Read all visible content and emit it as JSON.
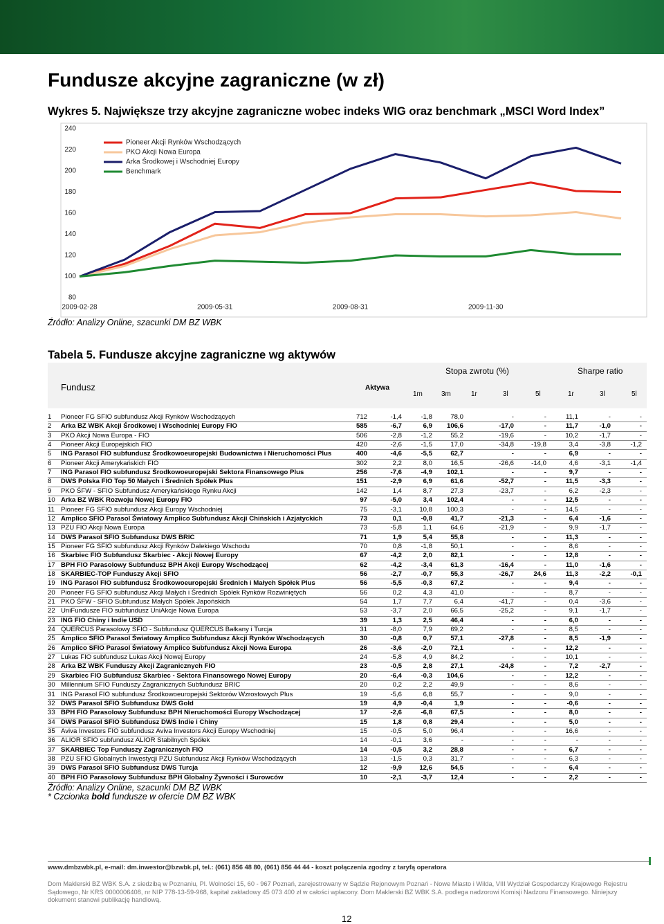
{
  "header": {
    "title": "Fundusze akcyjne zagraniczne (w zł)"
  },
  "chart_data": {
    "type": "line",
    "title": "Wykres 5. Największe trzy akcyjne zagraniczne wobec indeks WIG oraz benchmark „MSCI Word Index”",
    "categories": [
      "2009-02-28",
      null,
      null,
      "2009-05-31",
      null,
      null,
      "2009-08-31",
      null,
      null,
      "2009-11-30",
      null,
      null,
      null
    ],
    "series": [
      {
        "name": "Pioneer Akcji Rynków Wschodzących",
        "color": "#e2231a",
        "values": [
          100,
          112,
          129,
          150,
          146,
          159,
          160,
          174,
          175,
          182,
          189,
          181,
          180
        ]
      },
      {
        "name": "PKO Akcji Nowa Europa",
        "color": "#f7c79b",
        "values": [
          100,
          110,
          126,
          139,
          142,
          151,
          156,
          159,
          159,
          157,
          158,
          161,
          155
        ]
      },
      {
        "name": "Arka Środkowej i Wschodniej Europy",
        "color": "#1b1f6b",
        "values": [
          100,
          116,
          142,
          161,
          162,
          182,
          202,
          216,
          208,
          193,
          214,
          222,
          207
        ]
      },
      {
        "name": "Benchmark",
        "color": "#1f8a32",
        "values": [
          100,
          104,
          110,
          115,
          114,
          113,
          115,
          120,
          119,
          119,
          125,
          121,
          121
        ]
      }
    ],
    "ylim": [
      80,
      240
    ],
    "yticks": [
      80,
      100,
      120,
      140,
      160,
      180,
      200,
      220,
      240
    ],
    "legend": "upper left",
    "grid": false
  },
  "chart_source": "Źródło: Analizy Online, szacunki DM BZ WBK",
  "table": {
    "title": "Tabela 5. Fundusze akcyjne zagraniczne wg aktywów",
    "fund_header": "Fundusz",
    "assets_header": "Aktywa",
    "groups": [
      "Stopa zwrotu (%)",
      "Sharpe ratio"
    ],
    "subheaders": [
      "1m",
      "3m",
      "1r",
      "3l",
      "5l",
      "1r",
      "3l",
      "5l"
    ],
    "rows": [
      {
        "bold": false,
        "cells": [
          "1",
          "Pioneer FG SFIO subfundusz Akcji Rynków Wschodzących",
          "712",
          "-1,4",
          "-1,8",
          "78,0",
          "-",
          "-",
          "11,1",
          "-",
          "-"
        ]
      },
      {
        "bold": true,
        "cells": [
          "2",
          "Arka BZ WBK Akcji Środkowej i Wschodniej Europy FIO",
          "585",
          "-6,7",
          "6,9",
          "106,6",
          "-17,0",
          "-",
          "11,7",
          "-1,0",
          "-"
        ]
      },
      {
        "bold": false,
        "cells": [
          "3",
          "PKO Akcji Nowa Europa - FIO",
          "506",
          "-2,8",
          "-1,2",
          "55,2",
          "-19,6",
          "-",
          "10,2",
          "-1,7",
          "-"
        ]
      },
      {
        "bold": false,
        "cells": [
          "4",
          "Pioneer Akcji Europejskich FIO",
          "420",
          "-2,6",
          "-1,5",
          "17,0",
          "-34,8",
          "-19,8",
          "3,4",
          "-3,8",
          "-1,2"
        ]
      },
      {
        "bold": true,
        "cells": [
          "5",
          "ING Parasol FIO subfundusz Środkowoeuropejski Budownictwa i Nieruchomości Plus",
          "400",
          "-4,6",
          "-5,5",
          "62,7",
          "-",
          "-",
          "6,9",
          "-",
          "-"
        ]
      },
      {
        "bold": false,
        "cells": [
          "6",
          "Pioneer Akcji Amerykańskich FIO",
          "302",
          "2,2",
          "8,0",
          "16,5",
          "-26,6",
          "-14,0",
          "4,6",
          "-3,1",
          "-1,4"
        ]
      },
      {
        "bold": true,
        "cells": [
          "7",
          "ING Parasol FIO subfundusz Środkowoeuropejski Sektora Finansowego Plus",
          "256",
          "-7,6",
          "-4,9",
          "102,1",
          "-",
          "-",
          "9,7",
          "-",
          "-"
        ]
      },
      {
        "bold": true,
        "cells": [
          "8",
          "DWS Polska FIO Top 50 Małych i Średnich Spółek Plus",
          "151",
          "-2,9",
          "6,9",
          "61,6",
          "-52,7",
          "-",
          "11,5",
          "-3,3",
          "-"
        ]
      },
      {
        "bold": false,
        "cells": [
          "9",
          "PKO ŚFW - SFIO Subfundusz Amerykańskiego Rynku Akcji",
          "142",
          "1,4",
          "8,7",
          "27,3",
          "-23,7",
          "-",
          "6,2",
          "-2,3",
          "-"
        ]
      },
      {
        "bold": true,
        "cells": [
          "10",
          "Arka BZ WBK Rozwoju Nowej Europy FIO",
          "97",
          "-5,0",
          "3,4",
          "102,4",
          "-",
          "-",
          "12,5",
          "-",
          "-"
        ]
      },
      {
        "bold": false,
        "cells": [
          "11",
          "Pioneer FG SFIO subfundusz Akcji Europy Wschodniej",
          "75",
          "-3,1",
          "10,8",
          "100,3",
          "-",
          "-",
          "14,5",
          "-",
          "-"
        ]
      },
      {
        "bold": true,
        "cells": [
          "12",
          "Amplico SFIO Parasol Światowy Amplico Subfundusz Akcji Chińskich i Azjatyckich",
          "73",
          "0,1",
          "-0,8",
          "41,7",
          "-21,3",
          "-",
          "6,4",
          "-1,6",
          "-"
        ]
      },
      {
        "bold": false,
        "cells": [
          "13",
          "PZU FIO Akcji Nowa Europa",
          "73",
          "-5,8",
          "1,1",
          "64,6",
          "-21,9",
          "-",
          "9,9",
          "-1,7",
          "-"
        ]
      },
      {
        "bold": true,
        "cells": [
          "14",
          "DWS Parasol SFIO Subfundusz DWS BRIC",
          "71",
          "1,9",
          "5,4",
          "55,8",
          "-",
          "-",
          "11,3",
          "-",
          "-"
        ]
      },
      {
        "bold": false,
        "cells": [
          "15",
          "Pioneer FG SFIO subfundusz Akcji Rynków Dalekiego Wschodu",
          "70",
          "0,8",
          "-1,8",
          "50,1",
          "-",
          "-",
          "8,6",
          "-",
          "-"
        ]
      },
      {
        "bold": true,
        "cells": [
          "16",
          "Skarbiec FIO Subfundusz Skarbiec - Akcji Nowej Europy",
          "67",
          "-4,2",
          "2,0",
          "82,1",
          "-",
          "-",
          "12,8",
          "-",
          "-"
        ]
      },
      {
        "bold": true,
        "cells": [
          "17",
          "BPH FIO Parasolowy Subfundusz BPH Akcji Europy Wschodzącej",
          "62",
          "-4,2",
          "-3,4",
          "61,3",
          "-16,4",
          "-",
          "11,0",
          "-1,6",
          "-"
        ]
      },
      {
        "bold": true,
        "cells": [
          "18",
          "SKARBIEC-TOP Funduszy Akcji SFIO",
          "56",
          "-2,7",
          "-0,7",
          "55,3",
          "-26,7",
          "24,6",
          "11,3",
          "-2,2",
          "-0,1"
        ]
      },
      {
        "bold": true,
        "cells": [
          "19",
          "ING Parasol FIO subfundusz Środkowoeuropejski Średnich i Małych Spółek Plus",
          "56",
          "-5,5",
          "-0,3",
          "67,2",
          "-",
          "-",
          "9,4",
          "-",
          "-"
        ]
      },
      {
        "bold": false,
        "cells": [
          "20",
          "Pioneer FG SFIO subfundusz Akcji Małych i Średnich Spółek Rynków Rozwiniętych",
          "56",
          "0,2",
          "4,3",
          "41,0",
          "-",
          "-",
          "8,7",
          "-",
          "-"
        ]
      },
      {
        "bold": false,
        "cells": [
          "21",
          "PKO ŚFW - SFIO Subfundusz Małych Spółek Japońskich",
          "54",
          "1,7",
          "7,7",
          "6,4",
          "-41,7",
          "-",
          "0,4",
          "-3,6",
          "-"
        ]
      },
      {
        "bold": false,
        "cells": [
          "22",
          "UniFundusze FIO subfundusz UniAkcje Nowa Europa",
          "53",
          "-3,7",
          "2,0",
          "66,5",
          "-25,2",
          "-",
          "9,1",
          "-1,7",
          "-"
        ]
      },
      {
        "bold": true,
        "cells": [
          "23",
          "ING FIO Chiny i Indie USD",
          "39",
          "1,3",
          "2,5",
          "46,4",
          "-",
          "-",
          "6,0",
          "-",
          "-"
        ]
      },
      {
        "bold": false,
        "cells": [
          "24",
          "QUERCUS Parasolowy SFIO - Subfundusz QUERCUS Bałkany i Turcja",
          "31",
          "-8,0",
          "7,9",
          "69,2",
          "-",
          "-",
          "8,5",
          "-",
          "-"
        ]
      },
      {
        "bold": true,
        "cells": [
          "25",
          "Amplico SFIO Parasol Światowy Amplico Subfundusz Akcji Rynków Wschodzących",
          "30",
          "-0,8",
          "0,7",
          "57,1",
          "-27,8",
          "-",
          "8,5",
          "-1,9",
          "-"
        ]
      },
      {
        "bold": true,
        "cells": [
          "26",
          "Amplico SFIO Parasol Światowy Amplico Subfundusz Akcji Nowa Europa",
          "26",
          "-3,6",
          "-2,0",
          "72,1",
          "-",
          "-",
          "12,2",
          "-",
          "-"
        ]
      },
      {
        "bold": false,
        "cells": [
          "27",
          "Lukas FIO subfundusz Lukas Akcji Nowej Europy",
          "24",
          "-5,8",
          "4,9",
          "84,2",
          "-",
          "-",
          "10,1",
          "-",
          "-"
        ]
      },
      {
        "bold": true,
        "cells": [
          "28",
          "Arka BZ WBK Funduszy Akcji Zagranicznych FIO",
          "23",
          "-0,5",
          "2,8",
          "27,1",
          "-24,8",
          "-",
          "7,2",
          "-2,7",
          "-"
        ]
      },
      {
        "bold": true,
        "cells": [
          "29",
          "Skarbiec FIO Subfundusz Skarbiec - Sektora Finansowego Nowej Europy",
          "20",
          "-6,4",
          "-0,3",
          "104,6",
          "-",
          "-",
          "12,2",
          "-",
          "-"
        ]
      },
      {
        "bold": false,
        "cells": [
          "30",
          "Millennium SFIO Funduszy Zagranicznych Subfundusz BRIC",
          "20",
          "0,2",
          "2,2",
          "49,9",
          "-",
          "-",
          "8,6",
          "-",
          "-"
        ]
      },
      {
        "bold": false,
        "cells": [
          "31",
          "ING Parasol FIO subfundusz Środkowoeuropejski Sektorów Wzrostowych Plus",
          "19",
          "-5,6",
          "6,8",
          "55,7",
          "-",
          "-",
          "9,0",
          "-",
          "-"
        ]
      },
      {
        "bold": true,
        "cells": [
          "32",
          "DWS Parasol SFIO Subfundusz DWS Gold",
          "19",
          "4,9",
          "-0,4",
          "1,9",
          "-",
          "-",
          "-0,6",
          "-",
          "-"
        ]
      },
      {
        "bold": true,
        "cells": [
          "33",
          "BPH FIO Parasolowy Subfundusz BPH Nieruchomości Europy Wschodzącej",
          "17",
          "-2,6",
          "-6,8",
          "67,5",
          "-",
          "-",
          "8,0",
          "-",
          "-"
        ]
      },
      {
        "bold": true,
        "cells": [
          "34",
          "DWS Parasol SFIO Subfundusz DWS Indie i Chiny",
          "15",
          "1,8",
          "0,8",
          "29,4",
          "-",
          "-",
          "5,0",
          "-",
          "-"
        ]
      },
      {
        "bold": false,
        "cells": [
          "35",
          "Aviva Investors FIO subfundusz Aviva Investors Akcji Europy Wschodniej",
          "15",
          "-0,5",
          "5,0",
          "96,4",
          "-",
          "-",
          "16,6",
          "-",
          "-"
        ]
      },
      {
        "bold": false,
        "cells": [
          "36",
          "ALIOR SFIO subfundusz ALIOR Stabilnych Spółek",
          "14",
          "-0,1",
          "3,6",
          "-",
          "-",
          "-",
          "-",
          "-",
          "-"
        ]
      },
      {
        "bold": true,
        "cells": [
          "37",
          "SKARBIEC Top Funduszy Zagranicznych FIO",
          "14",
          "-0,5",
          "3,2",
          "28,8",
          "-",
          "-",
          "6,7",
          "-",
          "-"
        ]
      },
      {
        "bold": false,
        "cells": [
          "38",
          "PZU SFIO Globalnych Inwestycji PZU Subfundusz Akcji Rynków Wschodzących",
          "13",
          "-1,5",
          "0,3",
          "31,7",
          "-",
          "-",
          "6,3",
          "-",
          "-"
        ]
      },
      {
        "bold": true,
        "cells": [
          "39",
          "DWS Parasol SFIO Subfundusz DWS Turcja",
          "12",
          "-9,9",
          "12,6",
          "54,5",
          "-",
          "-",
          "6,4",
          "-",
          "-"
        ]
      },
      {
        "bold": true,
        "cells": [
          "40",
          "BPH FIO Parasolowy Subfundusz BPH Globalny Żywności i Surowców",
          "10",
          "-2,1",
          "-3,7",
          "12,4",
          "-",
          "-",
          "2,2",
          "-",
          "-"
        ]
      }
    ]
  },
  "notes": {
    "source": "Źródło: Analizy Online, szacunki DM BZ WBK",
    "bold_note_prefix": "* Czcionka ",
    "bold_note_bold": "bold",
    "bold_note_suffix": " fundusze w ofercie DM BZ WBK"
  },
  "footer": {
    "contact": "www.dmbzwbk.pl, e-mail: dm.inwestor@bzwbk.pl, tel.: (061) 856 48 80, (061) 856 44 44 - koszt połączenia zgodny z taryfą operatora",
    "legal": "Dom Maklerski BZ WBK S.A. z siedzibą w Poznaniu, Pl. Wolności 15, 60 - 967 Poznań, zarejestrowany w Sądzie Rejonowym Poznań - Nowe Miasto i Wilda, VIII Wydział Gospodarczy Krajowego Rejestru Sądowego, Nr KRS 0000006408, nr NIP 778-13-59-968, kapitał zakładowy 45 073 400 zł w całości wpłacony. Dom Maklerski BZ WBK S.A. podlega nadzorowi Komisji Nadzoru Finansowego. Niniejszy dokument stanowi publikację handlową.",
    "page": "12"
  }
}
